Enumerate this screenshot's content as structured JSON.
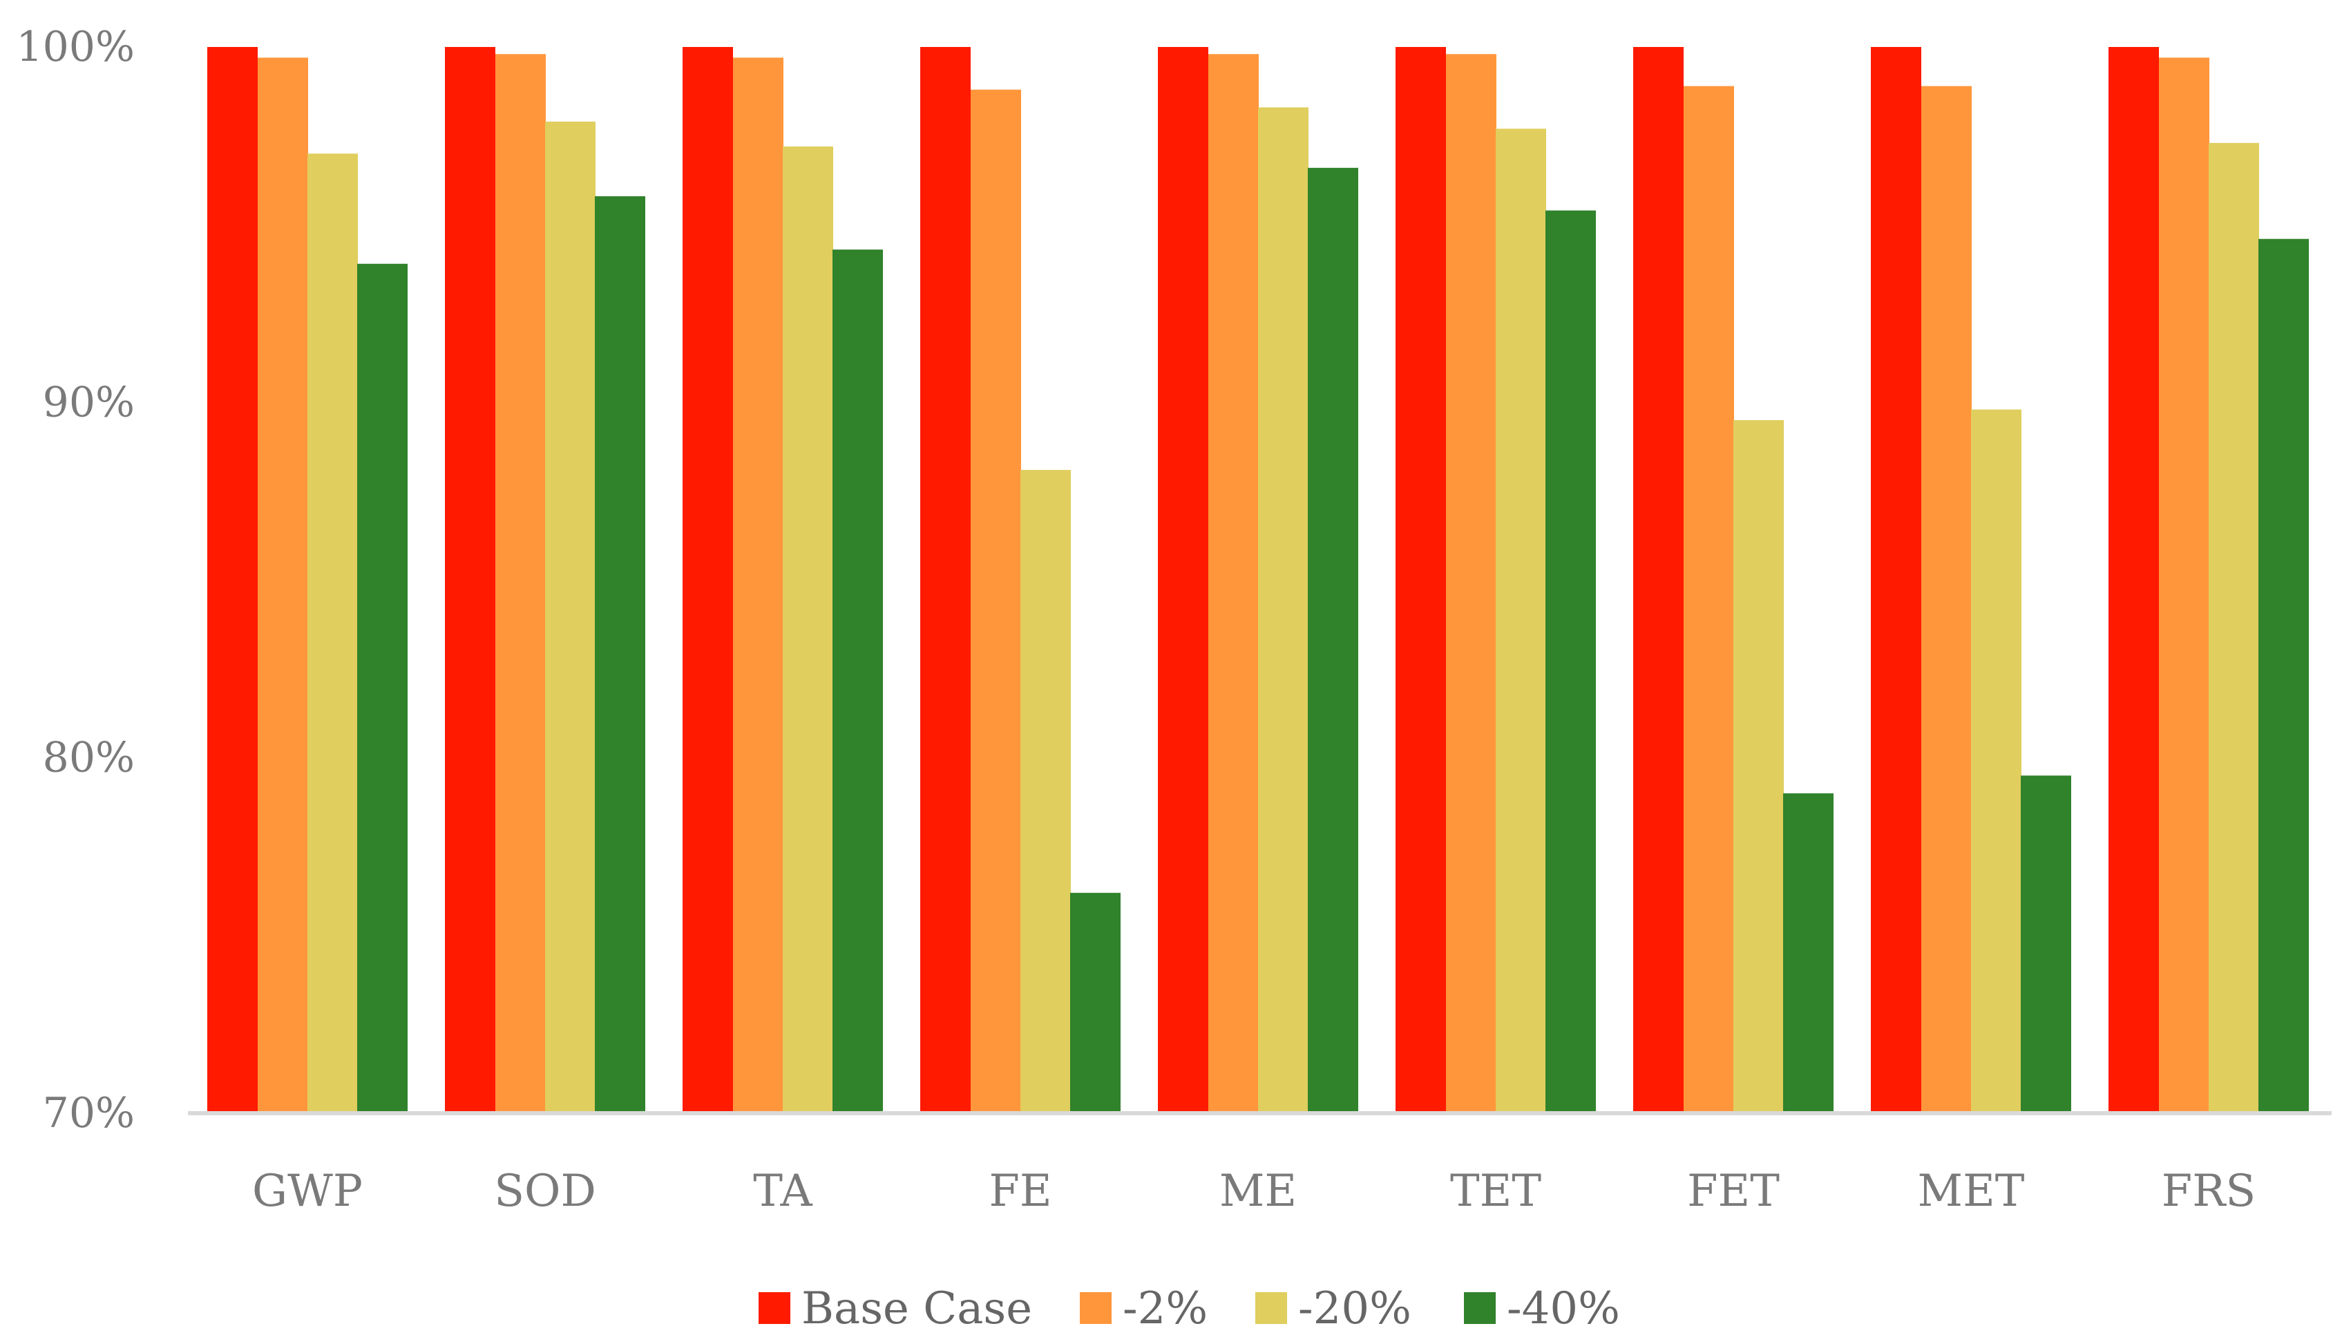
{
  "chart_data": {
    "type": "bar",
    "title": "",
    "xlabel": "",
    "ylabel": "",
    "ylim": [
      70,
      100
    ],
    "y_ticks": [
      70,
      80,
      90,
      100
    ],
    "y_tick_labels": [
      "70%",
      "80%",
      "90%",
      "100%"
    ],
    "grid": false,
    "legend_position": "bottom-center",
    "categories": [
      "GWP",
      "SOD",
      "TA",
      "FE",
      "ME",
      "TET",
      "FET",
      "MET",
      "FRS"
    ],
    "series": [
      {
        "name": "Base Case",
        "color": "#FF1A00",
        "values": [
          100,
          100,
          100,
          100,
          100,
          100,
          100,
          100,
          100
        ]
      },
      {
        "name": "-2%",
        "color": "#FF963B",
        "values": [
          99.7,
          99.8,
          99.7,
          98.8,
          99.8,
          99.8,
          98.9,
          98.9,
          99.7
        ]
      },
      {
        "name": "-20%",
        "color": "#E0CE5E",
        "values": [
          97.0,
          97.9,
          97.2,
          88.1,
          98.3,
          97.7,
          89.5,
          89.8,
          97.3
        ]
      },
      {
        "name": "-40%",
        "color": "#30822B",
        "values": [
          93.9,
          95.8,
          94.3,
          76.2,
          96.6,
          95.4,
          79.0,
          79.5,
          94.6
        ]
      }
    ]
  }
}
